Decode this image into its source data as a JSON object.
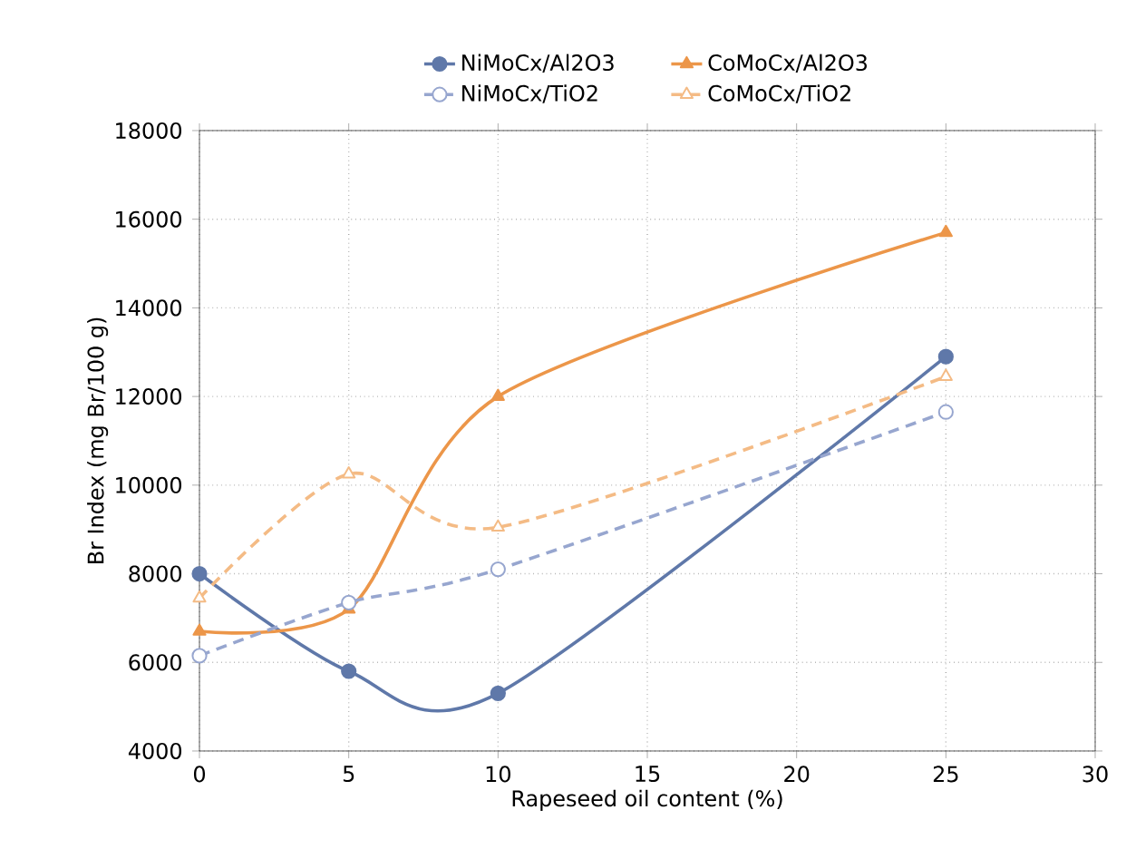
{
  "chart_data": {
    "type": "line",
    "xlabel": "Rapeseed oil content (%)",
    "ylabel": "Br Index (mg Br/100 g)",
    "x": [
      0,
      5,
      10,
      25
    ],
    "xlim": [
      0,
      30
    ],
    "xticks": [
      0,
      5,
      10,
      15,
      20,
      25,
      30
    ],
    "ylim": [
      4000,
      18000
    ],
    "yticks": [
      4000,
      6000,
      8000,
      10000,
      12000,
      14000,
      16000,
      18000
    ],
    "grid": true,
    "legend": "top",
    "series": [
      {
        "name": "NiMoCx/Al2O3",
        "color": "#5f78a9",
        "values": [
          8000,
          5800,
          5300,
          12900
        ],
        "marker": "circle",
        "line_style": "solid"
      },
      {
        "name": "CoMoCx/Al2O3",
        "color": "#ec9649",
        "values": [
          6700,
          7200,
          12000,
          15700
        ],
        "marker": "triangle",
        "line_style": "solid"
      },
      {
        "name": "NiMoCx/TiO2",
        "color": "#97a6cf",
        "values": [
          6150,
          7350,
          8100,
          11650
        ],
        "marker": "circle",
        "line_style": "dashed"
      },
      {
        "name": "CoMoCx/TiO2",
        "color": "#f4bb85",
        "values": [
          7450,
          10250,
          9050,
          12450
        ],
        "marker": "triangle",
        "line_style": "dashed"
      }
    ]
  }
}
